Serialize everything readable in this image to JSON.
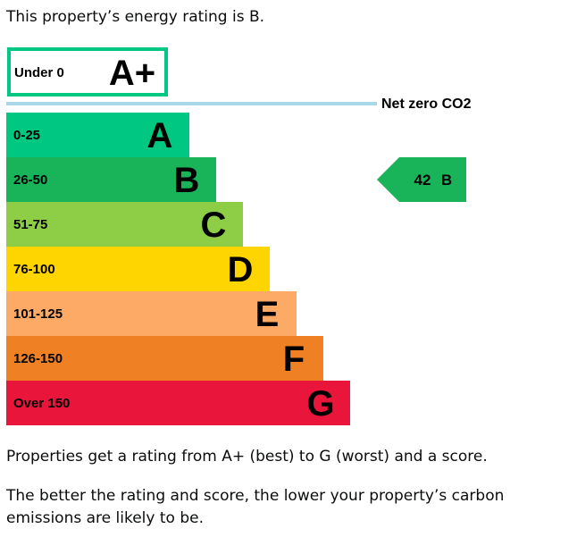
{
  "intro": "This property’s energy rating is B.",
  "chart_data": {
    "type": "bar",
    "title": "",
    "bands": [
      {
        "range": "Under 0",
        "letter": "A+",
        "color": "#ffffff",
        "outline": "#00c781"
      },
      {
        "range": "0-25",
        "letter": "A",
        "color": "#00c781"
      },
      {
        "range": "26-50",
        "letter": "B",
        "color": "#19b459"
      },
      {
        "range": "51-75",
        "letter": "C",
        "color": "#8dce46"
      },
      {
        "range": "76-100",
        "letter": "D",
        "color": "#ffd500"
      },
      {
        "range": "101-125",
        "letter": "E",
        "color": "#fcaa65"
      },
      {
        "range": "126-150",
        "letter": "F",
        "color": "#ef8023"
      },
      {
        "range": "Over 150",
        "letter": "G",
        "color": "#e9153b"
      }
    ],
    "net_zero_label": "Net zero CO2",
    "net_zero_line_color": "#a8d8ea",
    "current": {
      "score": "42",
      "letter": "B",
      "color": "#19b459"
    }
  },
  "notes": [
    "Properties get a rating from A+ (best) to G (worst) and a score.",
    "The better the rating and score, the lower your property’s carbon emissions are likely to be."
  ]
}
